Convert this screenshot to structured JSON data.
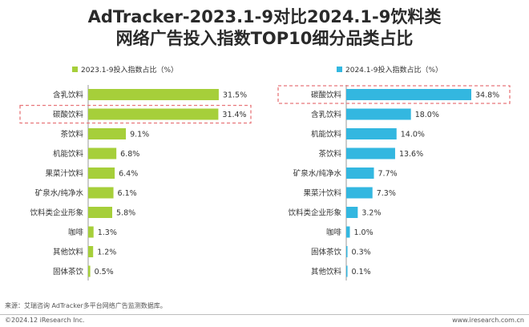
{
  "title_line1": "AdTracker-2023.1-9对比2024.1-9饮料类",
  "title_line2": "网络广告投入指数TOP10细分品类占比",
  "source": "来源：艾瑞咨询 AdTracker多平台网络广告监测数据库。",
  "copyright": "©2024.12 iResearch Inc.",
  "website": "www.iresearch.com.cn",
  "colors": {
    "left": "#a6cf3a",
    "right": "#33b7e0",
    "highlight": "#e8767a",
    "axis": "#9a9a9a"
  },
  "chart_data": [
    {
      "type": "bar",
      "orientation": "horizontal",
      "legend": "2023.1-9投入指数占比（%）",
      "legend_position": "top-left",
      "categories": [
        "含乳饮料",
        "碳酸饮料",
        "茶饮料",
        "机能饮料",
        "果菜汁饮料",
        "矿泉水/纯净水",
        "饮料类企业形象",
        "咖啡",
        "其他饮料",
        "固体茶饮"
      ],
      "values": [
        31.5,
        31.4,
        9.1,
        6.8,
        6.4,
        6.1,
        5.8,
        1.3,
        1.2,
        0.5
      ],
      "labels": [
        "31.5%",
        "31.4%",
        "9.1%",
        "6.8%",
        "6.4%",
        "6.1%",
        "5.8%",
        "1.3%",
        "1.2%",
        "0.5%"
      ],
      "highlighted": "碳酸饮料",
      "xlim": [
        0,
        34.8
      ],
      "grid": false
    },
    {
      "type": "bar",
      "orientation": "horizontal",
      "legend": "2024.1-9投入指数占比（%）",
      "legend_position": "top-left",
      "categories": [
        "碳酸饮料",
        "含乳饮料",
        "机能饮料",
        "茶饮料",
        "矿泉水/纯净水",
        "果菜汁饮料",
        "饮料类企业形象",
        "咖啡",
        "固体茶饮",
        "其他饮料"
      ],
      "values": [
        34.8,
        18.0,
        14.0,
        13.6,
        7.7,
        7.3,
        3.2,
        1.0,
        0.3,
        0.1
      ],
      "labels": [
        "34.8%",
        "18.0%",
        "14.0%",
        "13.6%",
        "7.7%",
        "7.3%",
        "3.2%",
        "1.0%",
        "0.3%",
        "0.1%"
      ],
      "highlighted": "碳酸饮料",
      "xlim": [
        0,
        34.8
      ],
      "grid": false
    }
  ]
}
